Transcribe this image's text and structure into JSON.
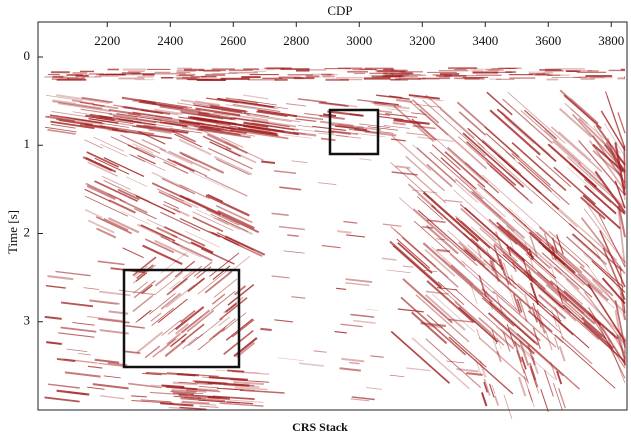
{
  "chart_data": {
    "type": "seismic",
    "title": "CRS Stack",
    "x_label": "CDP",
    "y_label": "Time [s]",
    "xlim": [
      1980,
      3850
    ],
    "xticks": [
      2200,
      2400,
      2600,
      2800,
      3000,
      3200,
      3400,
      3600,
      3800
    ],
    "ylim": [
      0,
      4
    ],
    "yticks": [
      0,
      1,
      2,
      3
    ],
    "color": "#a01c1c"
  }
}
